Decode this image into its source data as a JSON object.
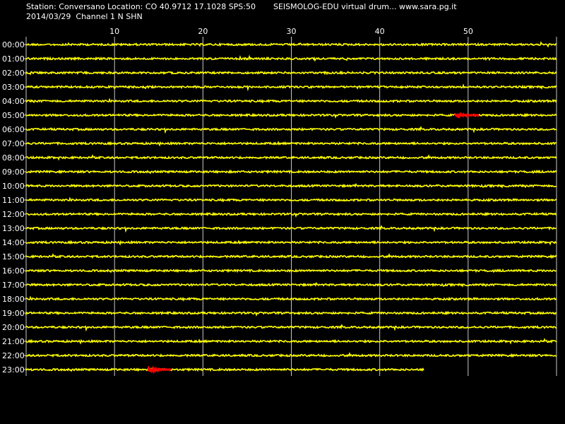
{
  "header": {
    "station_line": "Station: Conversano Location: CO 40.9712 17.1028 SPS:50",
    "title_line": "SEISMOLOG-EDU virtual drum... www.sara.pg.it",
    "date_line": "2014/03/29  Channel 1 N SHN"
  },
  "colors": {
    "background": "#000000",
    "trace": "#ffff00",
    "event": "#ff0000",
    "grid": "#c8c8c8",
    "text": "#ffffff"
  },
  "chart_data": {
    "type": "line",
    "x_unit_note": "",
    "xlim": [
      0,
      60
    ],
    "x_ticks": [
      10,
      20,
      30,
      40,
      50
    ],
    "rows": [
      "00:00",
      "01:00",
      "02:00",
      "03:00",
      "04:00",
      "05:00",
      "06:00",
      "07:00",
      "08:00",
      "09:00",
      "10:00",
      "11:00",
      "12:00",
      "13:00",
      "14:00",
      "15:00",
      "16:00",
      "17:00",
      "18:00",
      "19:00",
      "20:00",
      "21:00",
      "22:00",
      "23:00"
    ],
    "last_row_end_minute": 45,
    "events": [
      {
        "row": "05:00",
        "start_minute": 48.5,
        "end_minute": 51.2
      },
      {
        "row": "23:00",
        "start_minute": 13.8,
        "end_minute": 16.4
      }
    ],
    "grid": true
  }
}
